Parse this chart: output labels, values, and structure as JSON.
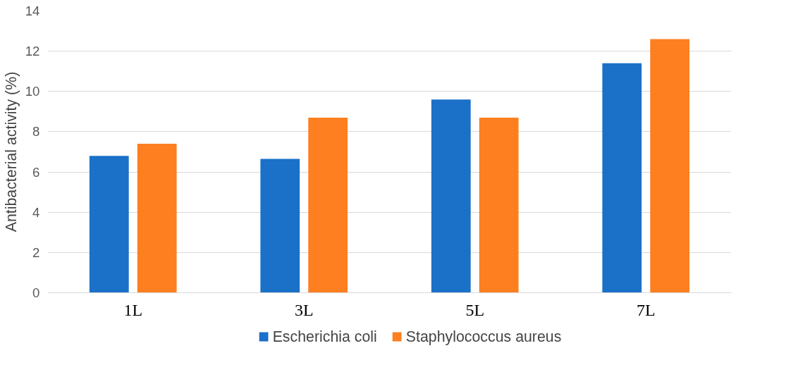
{
  "chart_data": {
    "type": "bar",
    "ylabel": "Antibacterial activity (%)",
    "categories": [
      "1L",
      "3L",
      "5L",
      "7L"
    ],
    "series": [
      {
        "name": "Escherichia coli",
        "color": "#1b70c8",
        "values": [
          6.8,
          6.65,
          9.6,
          11.4
        ]
      },
      {
        "name": "Staphylococcus aureus",
        "color": "#fd7f20",
        "values": [
          7.4,
          8.7,
          8.7,
          12.6
        ]
      }
    ],
    "ylim": [
      0,
      14
    ],
    "yticks": [
      0,
      2,
      4,
      6,
      8,
      10,
      12,
      14
    ],
    "grid": "y",
    "legend": "bottom"
  }
}
